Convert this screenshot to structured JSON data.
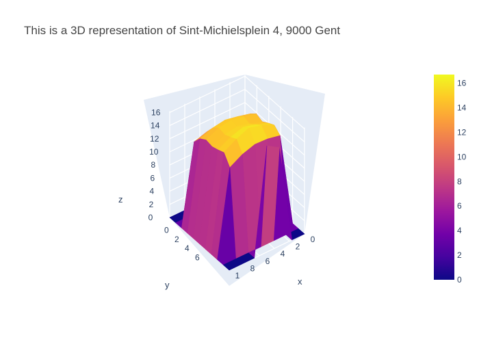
{
  "chart_data": {
    "type": "surface",
    "title": "This is a 3D representation of Sint-Michielsplein 4, 9000 Gent",
    "x_axis": {
      "label": "x",
      "ticks": [
        "0",
        "2",
        "4",
        "6",
        "8",
        "1"
      ]
    },
    "y_axis": {
      "label": "y",
      "ticks": [
        "0",
        "2",
        "4",
        "6"
      ]
    },
    "z_axis": {
      "label": "z",
      "range": [
        0,
        16.7
      ],
      "ticks": [
        "0",
        "2",
        "4",
        "6",
        "8",
        "10",
        "12",
        "14",
        "16"
      ]
    },
    "colorbar": {
      "range": [
        0,
        16.7
      ],
      "ticks": [
        "0",
        "2",
        "4",
        "6",
        "8",
        "10",
        "12",
        "14",
        "16"
      ],
      "colorscale": [
        "#0d0887",
        "#46039f",
        "#7201a8",
        "#9c179e",
        "#bd3786",
        "#d8576b",
        "#ed7953",
        "#fb9f3a",
        "#fdca26",
        "#f0f921"
      ]
    },
    "z_grid_rows": [
      [
        0,
        0,
        0,
        0,
        0,
        0,
        0,
        0,
        0,
        0,
        0
      ],
      [
        0,
        0,
        12.5,
        13.6,
        14.4,
        14.0,
        14.6,
        15.1,
        14.3,
        0,
        0
      ],
      [
        0,
        0,
        12.9,
        14.1,
        14.9,
        14.6,
        15.3,
        15.9,
        14.7,
        0,
        15.0
      ],
      [
        0,
        0,
        13.0,
        14.5,
        15.3,
        15.1,
        15.8,
        16.5,
        14.8,
        0,
        16.2
      ],
      [
        0,
        0,
        12.8,
        14.2,
        15.0,
        14.8,
        15.2,
        15.7,
        14.2,
        0,
        0
      ],
      [
        0,
        0,
        12.2,
        13.5,
        14.1,
        13.9,
        14.2,
        14.6,
        13.1,
        0,
        0
      ],
      [
        0,
        0,
        0,
        0,
        0,
        0,
        0,
        0,
        0,
        0,
        0
      ]
    ]
  }
}
